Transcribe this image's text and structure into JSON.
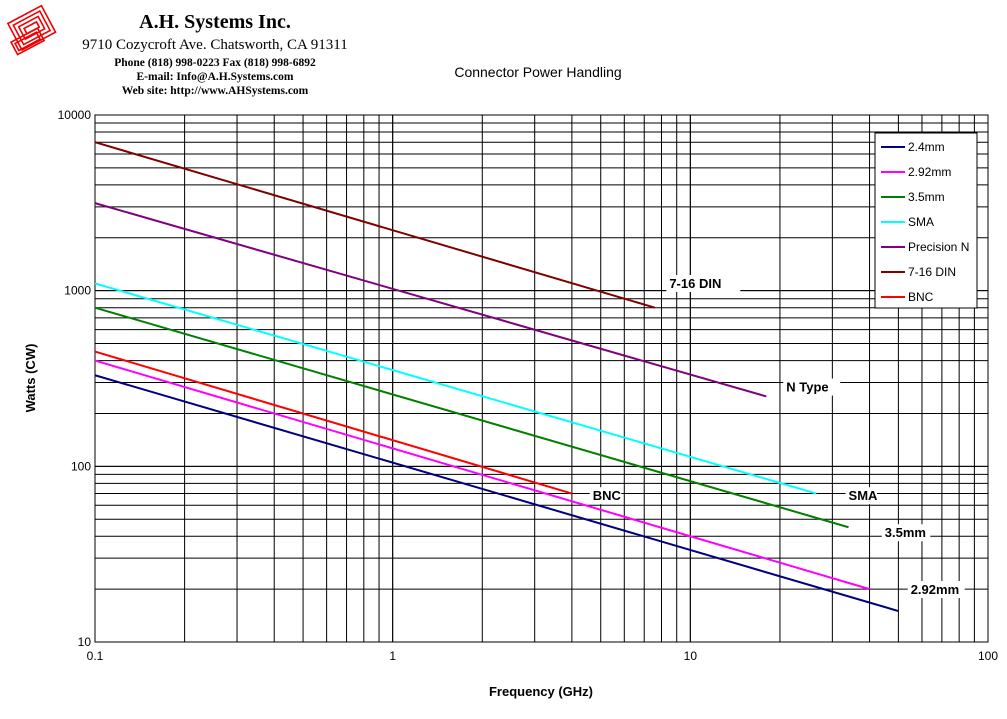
{
  "header": {
    "company": "A.H. Systems Inc.",
    "address": "9710 Cozycroft Ave. Chatsworth, CA 91311",
    "phone": "Phone (818) 998-0223 Fax (818) 998-6892",
    "email": "E-mail:  Info@A.H.Systems.com",
    "website": "Web site:  http://www.AHSystems.com"
  },
  "chart_data": {
    "type": "line",
    "title": "Connector Power Handling",
    "xlabel": "Frequency (GHz)",
    "ylabel": "Watts (CW)",
    "xscale": "log",
    "yscale": "log",
    "xlim": [
      0.1,
      100
    ],
    "ylim": [
      10,
      10000
    ],
    "xticks": [
      "0.1",
      "1",
      "10",
      "100"
    ],
    "yticks": [
      "10",
      "100",
      "1000",
      "10000"
    ],
    "grid": true,
    "legend": "top-right",
    "series": [
      {
        "name": "2.4mm",
        "color": "#000080",
        "x": [
          0.1,
          50
        ],
        "y": [
          330,
          15
        ]
      },
      {
        "name": "2.92mm",
        "color": "#ff00ff",
        "x": [
          0.1,
          40
        ],
        "y": [
          400,
          20
        ]
      },
      {
        "name": "3.5mm",
        "color": "#008000",
        "x": [
          0.1,
          34
        ],
        "y": [
          800,
          45
        ]
      },
      {
        "name": "SMA",
        "color": "#00ffff",
        "x": [
          0.1,
          26.5
        ],
        "y": [
          1100,
          70
        ]
      },
      {
        "name": "Precision N",
        "color": "#800080",
        "x": [
          0.1,
          18
        ],
        "y": [
          3150,
          250
        ]
      },
      {
        "name": "7-16 DIN",
        "color": "#800000",
        "x": [
          0.1,
          7.6
        ],
        "y": [
          7000,
          800
        ]
      },
      {
        "name": "BNC",
        "color": "#ff0000",
        "x": [
          0.1,
          4
        ],
        "y": [
          450,
          70
        ]
      }
    ],
    "annotations": [
      {
        "text": "7-16 DIN",
        "x": 8.5,
        "y": 1050
      },
      {
        "text": "N Type",
        "x": 21,
        "y": 270
      },
      {
        "text": "BNC",
        "x": 4.7,
        "y": 65
      },
      {
        "text": "SMA",
        "x": 34,
        "y": 65
      },
      {
        "text": "3.5mm",
        "x": 45,
        "y": 40
      },
      {
        "text": "2.92mm",
        "x": 55,
        "y": 19
      }
    ]
  }
}
